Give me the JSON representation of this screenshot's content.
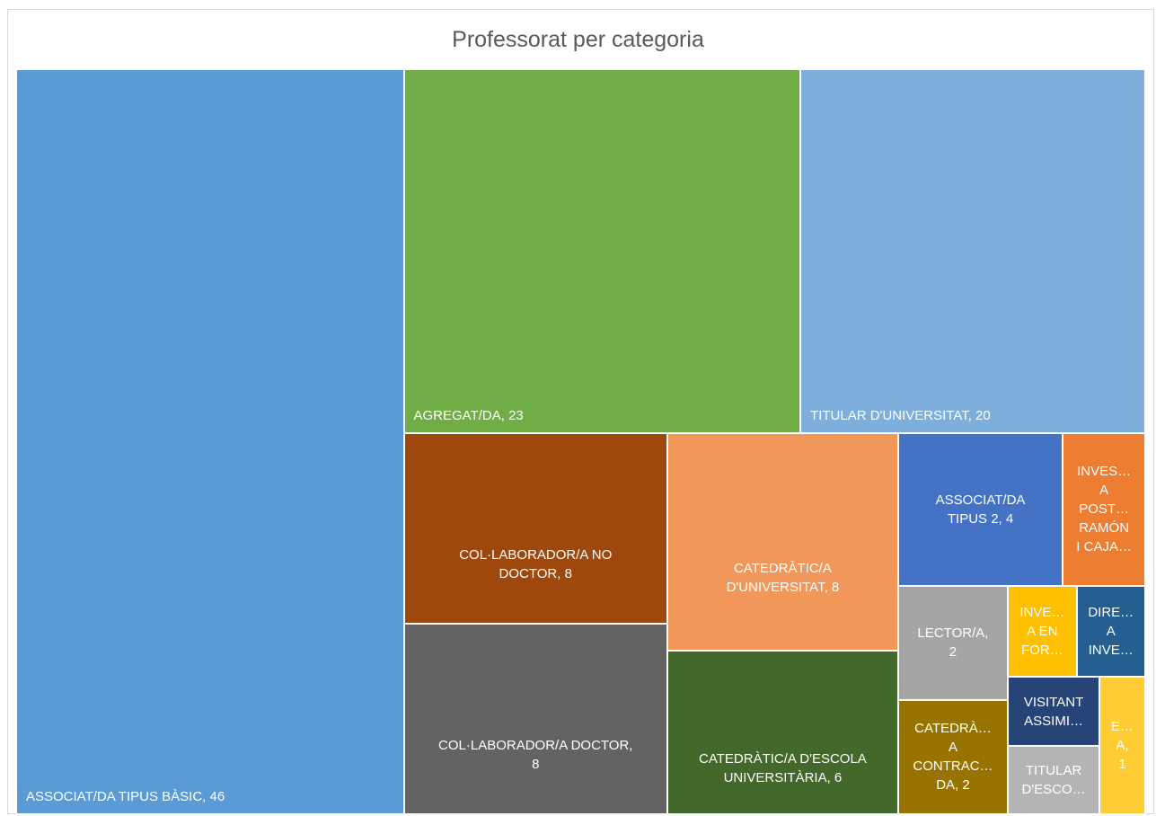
{
  "chart_data": {
    "type": "treemap",
    "title": "Professorat per categoria",
    "categories": [
      "ASSOCIAT/DA TIPUS BÀSIC, 46",
      "AGREGAT/DA, 23",
      "TITULAR D'UNIVERSITAT, 20",
      "COL·LABORADOR/A NO\nDOCTOR, 8",
      "COL·LABORADOR/A DOCTOR,\n8",
      "CATEDRÀTIC/A\nD'UNIVERSITAT, 8",
      "CATEDRÀTIC/A D'ESCOLA\nUNIVERSITÀRIA, 6",
      "ASSOCIAT/DA\nTIPUS 2, 4",
      "INVES…\nA\nPOST…\nRAMÓN\nI CAJA…",
      "LECTOR/A,\n2",
      "CATEDRÀ…\nA\nCONTRAC…\nDA, 2",
      "INVE…\nA EN\nFOR…",
      "DIRE…\nA\nINVE…",
      "VISITANT\nASSIMI…",
      "TITULAR\nD'ESCO…",
      "E…\nA,\n1"
    ],
    "values": [
      46,
      23,
      20,
      8,
      8,
      8,
      6,
      4,
      2,
      2,
      2,
      1,
      1,
      1,
      1,
      1
    ],
    "colors": [
      "#5b9bd5",
      "#70ad47",
      "#7eaedb",
      "#9e480e",
      "#636363",
      "#f1975a",
      "#43682b",
      "#4472c4",
      "#ed7d31",
      "#a5a5a5",
      "#997300",
      "#ffc000",
      "#255e91",
      "#264478",
      "#b4b4b4",
      "#ffcd33"
    ]
  }
}
